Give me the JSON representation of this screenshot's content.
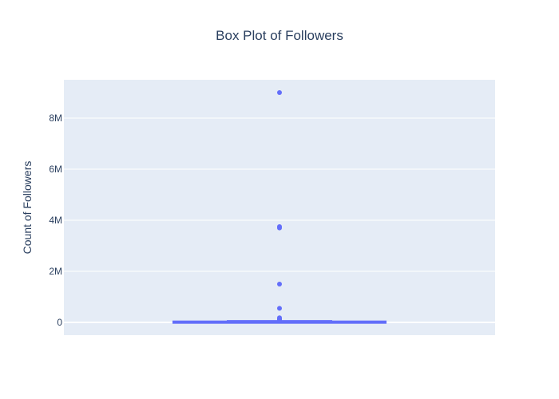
{
  "chart_data": {
    "type": "box",
    "title": "Box Plot of Followers",
    "ylabel": "Count of Followers",
    "xlabel": "",
    "ylim": [
      -500000,
      9500000
    ],
    "yticks": [
      {
        "value": 0,
        "label": "0"
      },
      {
        "value": 2000000,
        "label": "2M"
      },
      {
        "value": 4000000,
        "label": "4M"
      },
      {
        "value": 6000000,
        "label": "6M"
      },
      {
        "value": 8000000,
        "label": "8M"
      }
    ],
    "box": {
      "min": 0,
      "q1": 2000,
      "median": 8000,
      "q3": 25000,
      "upper_fence": 60000
    },
    "outliers": [
      9000000,
      3750000,
      3700000,
      1500000,
      550000,
      180000,
      140000,
      110000,
      90000,
      70000
    ],
    "grid": true,
    "legend": "none",
    "colors": {
      "series": "#636efa",
      "plot_bg": "#e5ecf6",
      "grid": "#ffffff",
      "text": "#2a3f5f"
    }
  }
}
